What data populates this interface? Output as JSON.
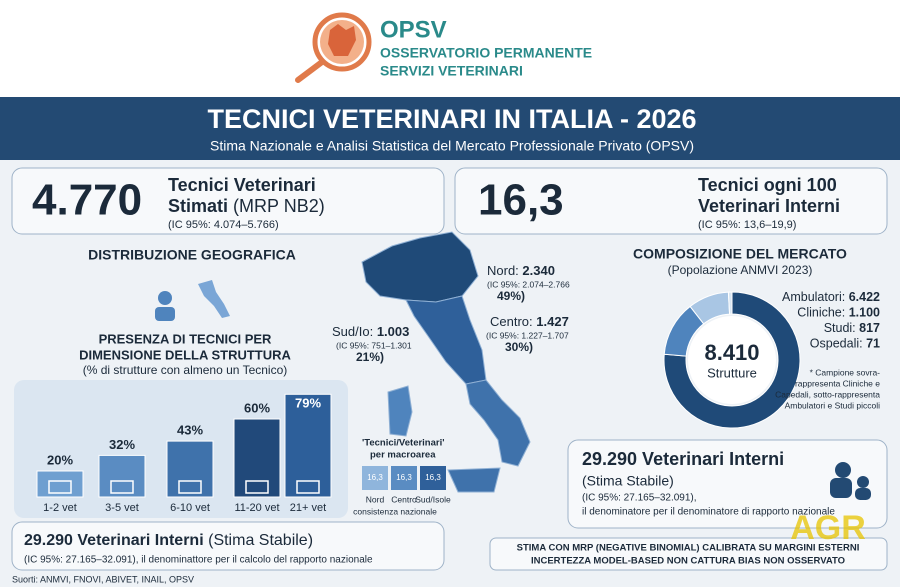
{
  "header": {
    "logo_title": "OPSV",
    "logo_line1": "OSSERVATORIO PERMANENTE",
    "logo_line2": "SERVIZI VETERINARI"
  },
  "banner": {
    "title": "TECNICI VETERINARI IN ITALIA - 2026",
    "subtitle": "Stima Nazionale e Analisi Statistica del Mercato Professionale Privato (OPSV)"
  },
  "kpi_left": {
    "value": "4.770",
    "line1": "Tecnici Veterinari",
    "line2_bold": "Stimati",
    "line2": "(MRP NB2)",
    "ci": "(IC 95%: 4.074–5.766)"
  },
  "kpi_right": {
    "value": "16,3",
    "line1": "Tecnici ogni 100",
    "line2": "Veterinari Interni",
    "ci": "(IC 95%: 13,6–19,9)"
  },
  "geo": {
    "title": "DISTRIBUZIONE GEOGRAFICA",
    "regions": [
      {
        "name": "Nord:",
        "value": "2.340",
        "ci": "(IC 95%: 2.074–2.766",
        "share": "49%)"
      },
      {
        "name": "Centro:",
        "value": "1.427",
        "ci": "(IC 95%: 1.227–1.707",
        "share": "30%)"
      },
      {
        "name": "Sud/Io:",
        "value": "1.003",
        "ci": "(IC 95%: 751–1.301",
        "share": "21%)"
      }
    ],
    "legend_title_1": "'Tecnici/Veterinari'",
    "legend_title_2": "per macroarea",
    "legend_values": [
      "16,3",
      "16,3",
      "16,3"
    ],
    "legend_labels": [
      "Nord",
      "Centro",
      "Sud/Isole"
    ],
    "legend_note": "consistenza nazionale"
  },
  "presence": {
    "title_1": "PRESENZA DI TECNICI PER",
    "title_2": "DIMENSIONE DELLA STRUTTURA",
    "subtitle": "(% di strutture con almeno un Tecnico)",
    "type": "bar",
    "categories": [
      "1-2 vet",
      "3-5 vet",
      "6-10 vet",
      "11-20 vet",
      "21+ vet"
    ],
    "values": [
      20,
      32,
      43,
      60,
      79
    ],
    "value_labels": [
      "20%",
      "32%",
      "43%",
      "60%",
      "79%"
    ],
    "colors": [
      "#6f9fd0",
      "#5a8cc2",
      "#3f72ab",
      "#21497a",
      "#2d5f9a"
    ]
  },
  "market": {
    "title": "COMPOSIZIONE DEL MERCATO",
    "subtitle": "(Popolazione ANMVI 2023)",
    "type": "pie",
    "total": "8.410",
    "total_label": "Strutture",
    "categories": [
      "Ambulatori:",
      "Cliniche:",
      "Studi:",
      "Ospedali:"
    ],
    "values": [
      6422,
      1100,
      817,
      71
    ],
    "value_labels": [
      "6.422",
      "1.100",
      "817",
      "71"
    ],
    "colors": [
      "#1f4a78",
      "#4f84bd",
      "#a9c6e4",
      "#d8e6f3"
    ],
    "note": [
      "* Campione sovra-",
      "rappresenta Cliniche e",
      "Capedali, sotto-rappresenta",
      "Ambulatori e Studi piccoli"
    ]
  },
  "vet_box": {
    "title": "29.290 Veterinari Interni",
    "subtitle": "(Stima Stabile)",
    "ci": "(IC 95%: 27.165–32.091),",
    "note": "il denominatore per il denominatore di rapporto nazionale"
  },
  "vet_box_bottom": {
    "title": "29.290 Veterinari Interni",
    "subtitle": "(Stima Stabile)",
    "note": "(IC 95%: 27.165–32.091), il denominattore per il calcolo del rapporto nazionale"
  },
  "method": [
    "STIMA CON MRP (NEGATIVE BINOMIAL) CALIBRATA SU MARGINI ESTERNI",
    "INCERTEZZA MODEL-BASED NON CATTURA BIAS NON OSSERVATO"
  ],
  "source": "Suorti: ANMVI, FNOVI, ABIVET, INAIL, OPSV",
  "watermark": "AGR"
}
